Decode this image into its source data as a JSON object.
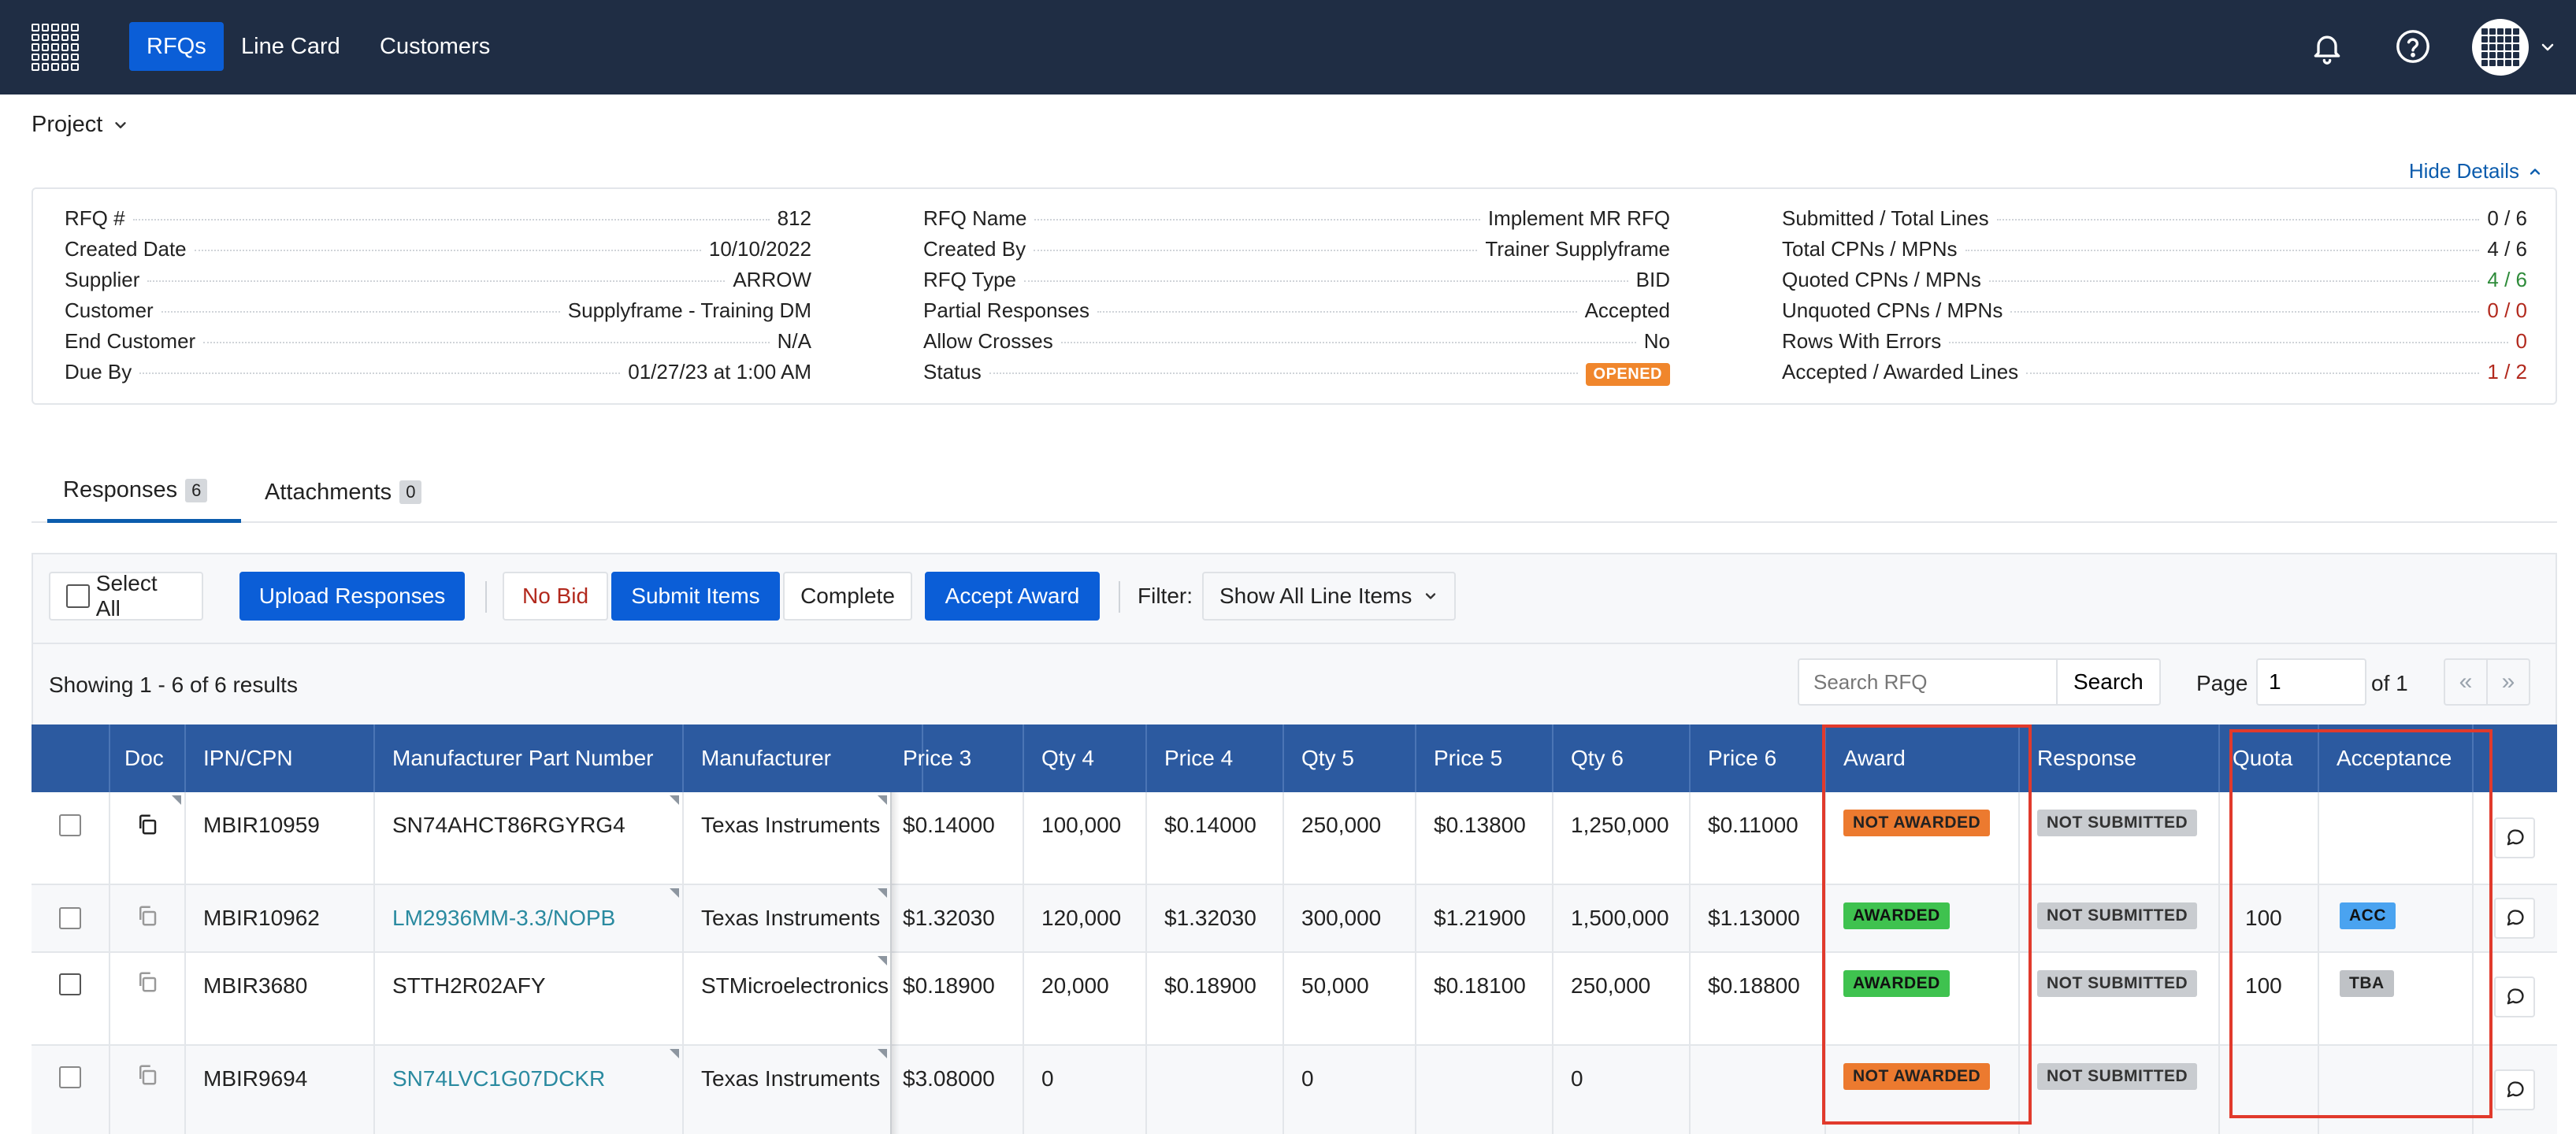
{
  "nav": {
    "items": [
      {
        "label": "RFQs",
        "active": true
      },
      {
        "label": "Line Card",
        "active": false
      },
      {
        "label": "Customers",
        "active": false
      }
    ],
    "icons": [
      "apps-grid-icon",
      "bell-icon",
      "help-icon",
      "avatar",
      "chevron-down-icon"
    ]
  },
  "subbar": {
    "project_label": "Project",
    "hide_details_label": "Hide Details"
  },
  "details": {
    "col1": [
      {
        "label": "RFQ #",
        "value": "812"
      },
      {
        "label": "Created Date",
        "value": "10/10/2022"
      },
      {
        "label": "Supplier",
        "value": "ARROW"
      },
      {
        "label": "Customer",
        "value": "Supplyframe - Training DM"
      },
      {
        "label": "End Customer",
        "value": "N/A"
      },
      {
        "label": "Due By",
        "value": "01/27/23 at 1:00 AM"
      }
    ],
    "col2": [
      {
        "label": "RFQ Name",
        "value": "Implement MR RFQ"
      },
      {
        "label": "Created By",
        "value": "Trainer Supplyframe"
      },
      {
        "label": "RFQ Type",
        "value": "BID"
      },
      {
        "label": "Partial Responses",
        "value": "Accepted"
      },
      {
        "label": "Allow Crosses",
        "value": "No"
      },
      {
        "label": "Status",
        "value": "OPENED"
      }
    ],
    "col3": [
      {
        "label": "Submitted / Total Lines",
        "value": "0 / 6",
        "color": ""
      },
      {
        "label": "Total CPNs / MPNs",
        "value": "4 / 6",
        "color": ""
      },
      {
        "label": "Quoted CPNs / MPNs",
        "value": "4 / 6",
        "color": "green"
      },
      {
        "label": "Unquoted CPNs / MPNs",
        "value": "0 / 0",
        "color": "red"
      },
      {
        "label": "Rows With Errors",
        "value": "0",
        "color": "red"
      },
      {
        "label": "Accepted / Awarded Lines",
        "value": "1 / 2",
        "color": "red"
      }
    ]
  },
  "tabs": [
    {
      "label": "Responses",
      "count": "6",
      "active": true
    },
    {
      "label": "Attachments",
      "count": "0",
      "active": false
    }
  ],
  "toolbar": {
    "select_all": "Select All",
    "upload": "Upload Responses",
    "no_bid": "No Bid",
    "submit": "Submit Items",
    "complete": "Complete",
    "accept_award": "Accept Award",
    "filter_label": "Filter:",
    "filter_value": "Show All Line Items",
    "showing": "Showing 1 - 6 of 6 results",
    "search_placeholder": "Search RFQ",
    "search_button": "Search",
    "page_label": "Page",
    "page_value": "1",
    "page_of": "of 1",
    "prev": "«",
    "next": "»"
  },
  "table": {
    "headers": [
      "Doc",
      "IPN/CPN",
      "Manufacturer Part Number",
      "Manufacturer",
      "Price 3",
      "Qty 4",
      "Price 4",
      "Qty 5",
      "Price 5",
      "Qty 6",
      "Price 6",
      "Award",
      "Response",
      "Quota",
      "Acceptance"
    ],
    "rows": [
      {
        "ipn": "MBIR10959",
        "mpn": "SN74AHCT86RGYRG4",
        "mpn_link": false,
        "mfr": "Texas Instruments",
        "price3": "$0.14000",
        "qty4": "100,000",
        "price4": "$0.14000",
        "qty5": "250,000",
        "price5": "$0.13800",
        "qty6": "1,250,000",
        "price6": "$0.11000",
        "award": "NOT AWARDED",
        "response": "NOT SUBMITTED",
        "quota": "",
        "acceptance": ""
      },
      {
        "ipn": "MBIR10962",
        "mpn": "LM2936MM-3.3/NOPB",
        "mpn_link": true,
        "mfr": "Texas Instruments",
        "price3": "$1.32030",
        "qty4": "120,000",
        "price4": "$1.32030",
        "qty5": "300,000",
        "price5": "$1.21900",
        "qty6": "1,500,000",
        "price6": "$1.13000",
        "award": "AWARDED",
        "response": "NOT SUBMITTED",
        "quota": "100",
        "acceptance": "ACC"
      },
      {
        "ipn": "MBIR3680",
        "mpn": "STTH2R02AFY",
        "mpn_link": false,
        "mfr": "STMicroelectronics",
        "price3": "$0.18900",
        "qty4": "20,000",
        "price4": "$0.18900",
        "qty5": "50,000",
        "price5": "$0.18100",
        "qty6": "250,000",
        "price6": "$0.18800",
        "award": "AWARDED",
        "response": "NOT SUBMITTED",
        "quota": "100",
        "acceptance": "TBA"
      },
      {
        "ipn": "MBIR9694",
        "mpn": "SN74LVC1G07DCKR",
        "mpn_link": true,
        "mfr": "Texas Instruments",
        "price3": "$3.08000",
        "qty4": "0",
        "price4": "",
        "qty5": "0",
        "price5": "",
        "qty6": "0",
        "price6": "",
        "award": "NOT AWARDED",
        "response": "NOT SUBMITTED",
        "quota": "",
        "acceptance": ""
      }
    ]
  },
  "colors": {
    "nav_bg": "#1f2d44",
    "primary": "#0b5ed7",
    "table_header": "#2c5aa0",
    "awarded": "#3fc24f",
    "not_awarded": "#ec7a2f",
    "opened": "#f0862c",
    "highlight": "#e13a2c"
  }
}
